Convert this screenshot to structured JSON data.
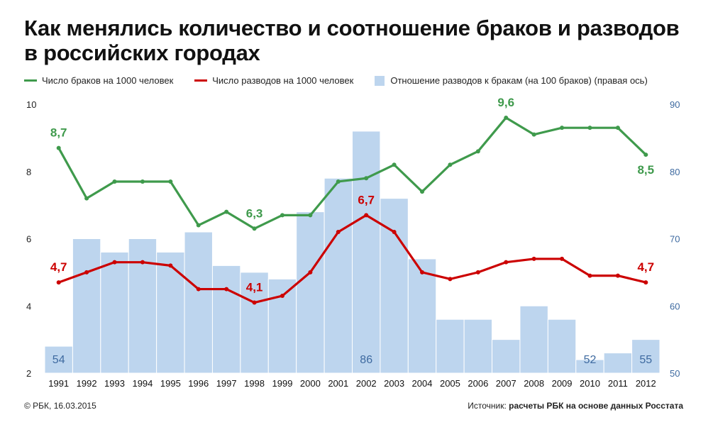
{
  "title": "Как менялись количество и соотношение браков и разводов в российских городах",
  "legend": {
    "marriages": "Число браков на 1000 человек",
    "divorces": "Число разводов на 1000 человек",
    "ratio": "Отношение разводов к бракам (на 100 браков) (правая ось)"
  },
  "footer": {
    "left": "© РБК, 16.03.2015",
    "source_prefix": "Источник:",
    "source_text": "расчеты РБК на основе данных Росстата"
  },
  "colors": {
    "marriages": "#3f9a4c",
    "divorces": "#cc0000",
    "bars": "#bdd5ee",
    "right_axis": "#3e6aa0",
    "left_axis": "#222222"
  },
  "chart_data": {
    "type": "bar+line",
    "categories": [
      "1991",
      "1992",
      "1993",
      "1994",
      "1995",
      "1996",
      "1997",
      "1998",
      "1999",
      "2000",
      "2001",
      "2002",
      "2003",
      "2004",
      "2005",
      "2006",
      "2007",
      "2008",
      "2009",
      "2010",
      "2011",
      "2012"
    ],
    "series": [
      {
        "name": "Число браков на 1000 человек",
        "type": "line",
        "axis": "left",
        "values": [
          8.7,
          7.2,
          7.7,
          7.7,
          7.7,
          6.4,
          6.8,
          6.3,
          6.7,
          6.7,
          7.7,
          7.8,
          8.2,
          7.4,
          8.2,
          8.6,
          9.6,
          9.1,
          9.3,
          9.3,
          9.3,
          8.5
        ],
        "labels": {
          "0": "8,7",
          "7": "6,3",
          "16": "9,6",
          "21": "8,5"
        }
      },
      {
        "name": "Число разводов на 1000 человек",
        "type": "line",
        "axis": "left",
        "values": [
          4.7,
          5.0,
          5.3,
          5.3,
          5.2,
          4.5,
          4.5,
          4.1,
          4.3,
          5.0,
          6.2,
          6.7,
          6.2,
          5.0,
          4.8,
          5.0,
          5.3,
          5.4,
          5.4,
          4.9,
          4.9,
          4.7
        ],
        "labels": {
          "0": "4,7",
          "7": "4,1",
          "11": "6,7",
          "21": "4,7"
        }
      },
      {
        "name": "Отношение разводов к бракам (на 100 браков) (правая ось)",
        "type": "bar",
        "axis": "right",
        "values": [
          54,
          70,
          68,
          70,
          68,
          71,
          66,
          65,
          64,
          74,
          79,
          86,
          76,
          67,
          58,
          58,
          55,
          60,
          58,
          52,
          53,
          55
        ],
        "labels": {
          "0": "54",
          "11": "86",
          "19": "52",
          "21": "55"
        }
      }
    ],
    "y_left": {
      "range": [
        2,
        10
      ],
      "ticks": [
        "2",
        "4",
        "6",
        "8",
        "10"
      ]
    },
    "y_right": {
      "range": [
        50,
        90
      ],
      "ticks": [
        "50",
        "60",
        "70",
        "80",
        "90"
      ]
    },
    "grid": false,
    "legend_position": "top"
  }
}
